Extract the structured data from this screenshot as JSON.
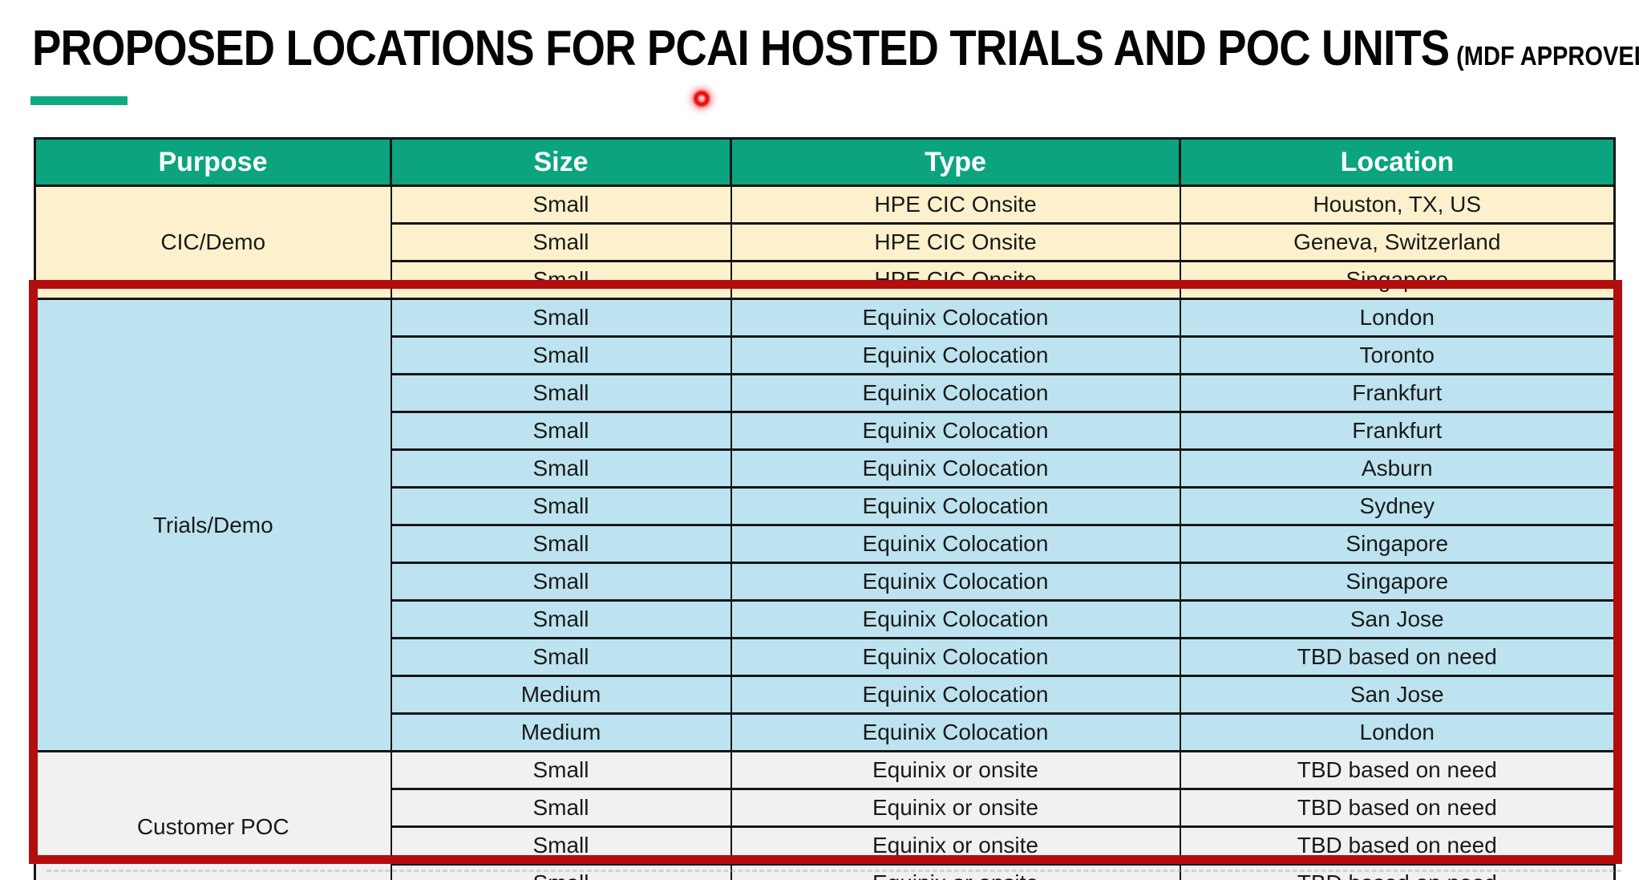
{
  "slide": {
    "title": "PROPOSED LOCATIONS FOR PCAI HOSTED TRIALS AND POC UNITS",
    "title_suffix": "(MDF APPROVED)"
  },
  "colors": {
    "header_bg": "#0ba47e",
    "accent_bar": "#10a981",
    "cic_bg": "#fcf1cc",
    "trials_bg": "#bde3f0",
    "poc_bg": "#f1f1f1",
    "highlight_border": "#b40d0d",
    "grid_line": "#161616",
    "header_text": "#ffffff",
    "body_text": "#1a1a1a",
    "laser_dot": "#f21111"
  },
  "table": {
    "headers": [
      "Purpose",
      "Size",
      "Type",
      "Location"
    ],
    "groups": [
      {
        "purpose": "CIC/Demo",
        "style": "cic",
        "highlighted": false,
        "rows": [
          {
            "size": "Small",
            "type": "HPE CIC Onsite",
            "location": "Houston, TX, US"
          },
          {
            "size": "Small",
            "type": "HPE CIC Onsite",
            "location": "Geneva, Switzerland"
          },
          {
            "size": "Small",
            "type": "HPE CIC Onsite",
            "location": "Singapore"
          }
        ]
      },
      {
        "purpose": "Trials/Demo",
        "style": "trials",
        "highlighted": true,
        "rows": [
          {
            "size": "Small",
            "type": "Equinix Colocation",
            "location": "London"
          },
          {
            "size": "Small",
            "type": "Equinix Colocation",
            "location": "Toronto"
          },
          {
            "size": "Small",
            "type": "Equinix Colocation",
            "location": "Frankfurt"
          },
          {
            "size": "Small",
            "type": "Equinix Colocation",
            "location": "Frankfurt"
          },
          {
            "size": "Small",
            "type": "Equinix Colocation",
            "location": "Asburn"
          },
          {
            "size": "Small",
            "type": "Equinix Colocation",
            "location": "Sydney"
          },
          {
            "size": "Small",
            "type": "Equinix Colocation",
            "location": "Singapore"
          },
          {
            "size": "Small",
            "type": "Equinix Colocation",
            "location": "Singapore"
          },
          {
            "size": "Small",
            "type": "Equinix Colocation",
            "location": "San Jose"
          },
          {
            "size": "Small",
            "type": "Equinix Colocation",
            "location": "TBD based on need"
          },
          {
            "size": "Medium",
            "type": "Equinix Colocation",
            "location": "San Jose"
          },
          {
            "size": "Medium",
            "type": "Equinix Colocation",
            "location": "London"
          }
        ]
      },
      {
        "purpose": "Customer POC",
        "style": "poc",
        "highlighted": true,
        "rows": [
          {
            "size": "Small",
            "type": "Equinix or onsite",
            "location": "TBD based on need"
          },
          {
            "size": "Small",
            "type": "Equinix or onsite",
            "location": "TBD based on need"
          },
          {
            "size": "Small",
            "type": "Equinix or onsite",
            "location": "TBD based on need"
          },
          {
            "size": "Small",
            "type": "Equinix or onsite",
            "location": "TBD based on need"
          }
        ]
      }
    ]
  },
  "annotations": {
    "laser_pointer": "red laser dot below title",
    "highlight_rectangle": "thick dark-red box around Trials/Demo and Customer POC rows"
  }
}
